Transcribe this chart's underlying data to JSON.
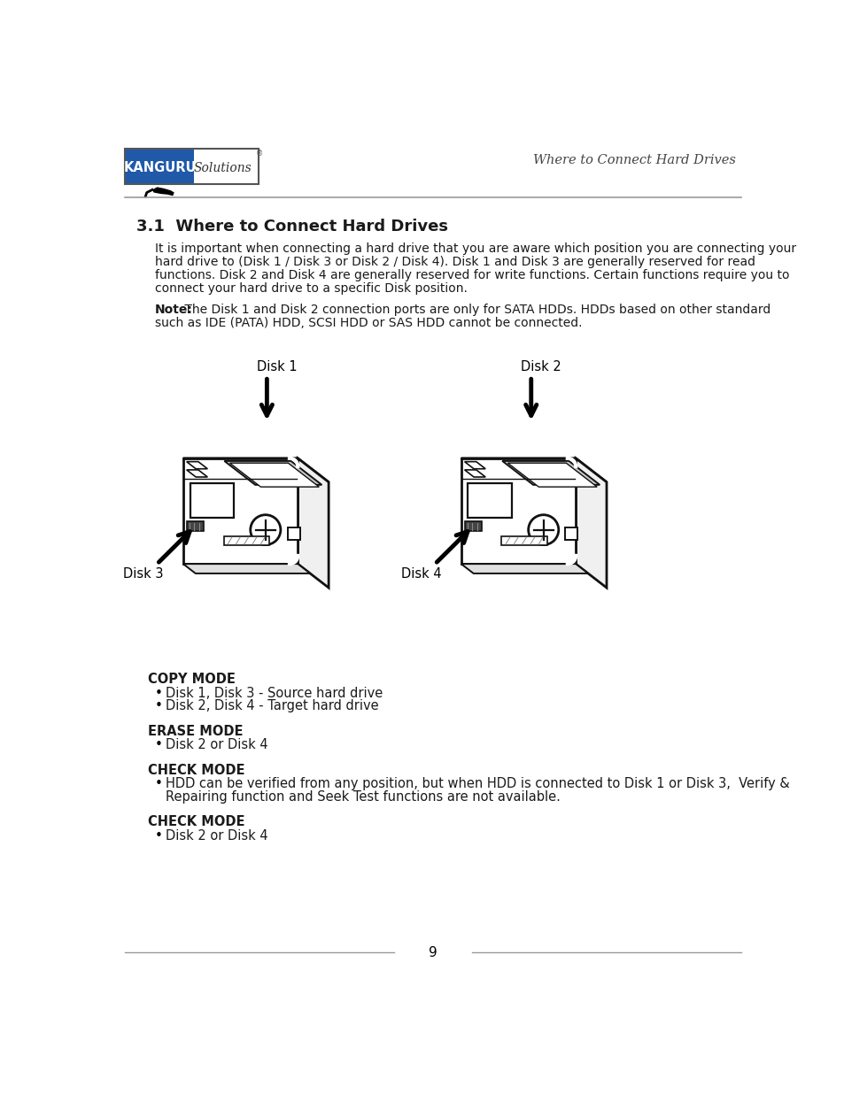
{
  "page_title_right": "Where to Connect Hard Drives",
  "section_title": "3.1  Where to Connect Hard Drives",
  "paragraph1_lines": [
    "It is important when connecting a hard drive that you are aware which position you are connecting your",
    "hard drive to (Disk 1 / Disk 3 or Disk 2 / Disk 4). Disk 1 and Disk 3 are generally reserved for read",
    "functions. Disk 2 and Disk 4 are generally reserved for write functions. Certain functions require you to",
    "connect your hard drive to a specific Disk position."
  ],
  "paragraph2_bold": "Note:",
  "paragraph2_lines": [
    " The Disk 1 and Disk 2 connection ports are only for SATA HDDs. HDDs based on other standard",
    "such as IDE (PATA) HDD, SCSI HDD or SAS HDD cannot be connected."
  ],
  "copy_mode_title": "COPY MODE",
  "copy_mode_bullets": [
    "Disk 1, Disk 3 - Source hard drive",
    "Disk 2, Disk 4 - Target hard drive"
  ],
  "erase_mode_title": "ERASE MODE",
  "erase_mode_bullets": [
    "Disk 2 or Disk 4"
  ],
  "check_mode_title1": "CHECK MODE",
  "check_mode_bullets1_lines": [
    "HDD can be verified from any position, but when HDD is connected to Disk 1 or Disk 3,  Verify &",
    "Repairing function and Seek Test functions are not available."
  ],
  "check_mode_title2": "CHECK MODE",
  "check_mode_bullets2": [
    "Disk 2 or Disk 4"
  ],
  "page_number": "9",
  "bg_color": "#ffffff",
  "text_color": "#1a1a1a",
  "gray_line_color": "#999999",
  "logo_blue": "#2059a8",
  "body_line_color": "#111111",
  "gray_fill": "#c8c8c8",
  "light_gray": "#e8e8e8"
}
